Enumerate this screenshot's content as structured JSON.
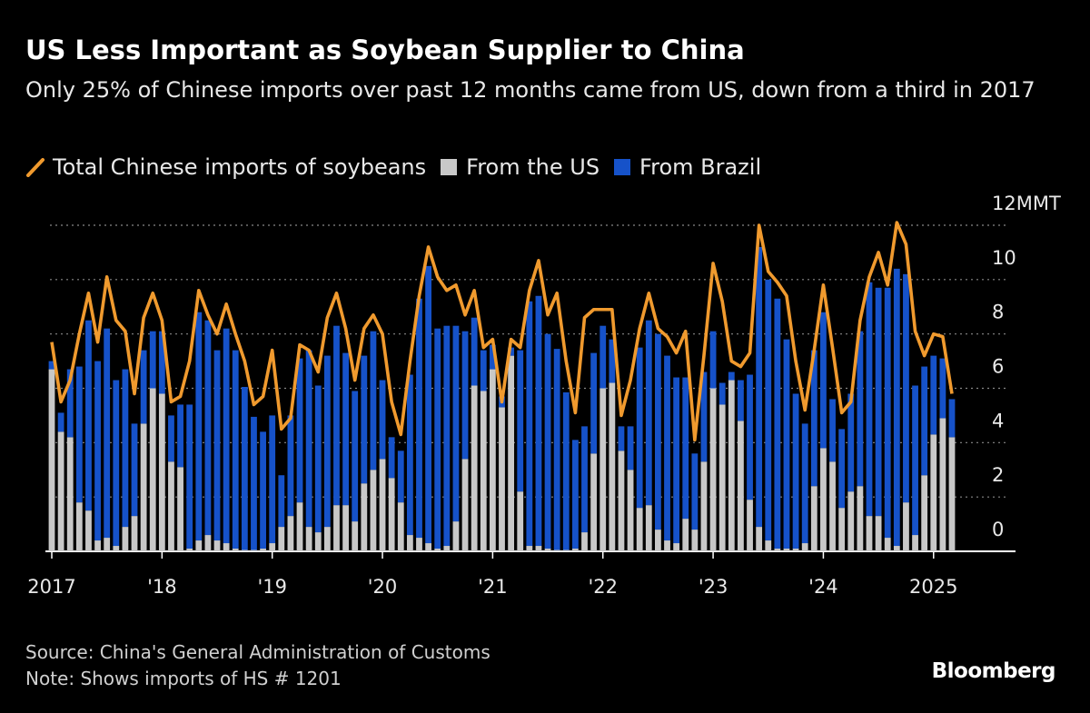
{
  "chart_data": {
    "type": "bar",
    "stacked": true,
    "title": "US Less Important as Soybean Supplier to China",
    "subtitle": "Only 25% of Chinese imports over past 12 months came from US, down from a third in 2017",
    "categories": [
      "2017",
      null,
      null,
      null,
      null,
      null,
      null,
      null,
      null,
      null,
      null,
      null,
      "'18",
      null,
      null,
      null,
      null,
      null,
      null,
      null,
      null,
      null,
      null,
      null,
      "'19",
      null,
      null,
      null,
      null,
      null,
      null,
      null,
      null,
      null,
      null,
      null,
      "'20",
      null,
      null,
      null,
      null,
      null,
      null,
      null,
      null,
      null,
      null,
      null,
      "'21",
      null,
      null,
      null,
      null,
      null,
      null,
      null,
      null,
      null,
      null,
      null,
      "'22",
      null,
      null,
      null,
      null,
      null,
      null,
      null,
      null,
      null,
      null,
      null,
      "'23",
      null,
      null,
      null,
      null,
      null,
      null,
      null,
      null,
      null,
      null,
      null,
      "'24",
      null,
      null,
      null,
      null,
      null,
      null,
      null,
      null,
      null,
      null,
      null,
      "2025",
      null,
      null
    ],
    "series": [
      {
        "name": "Total Chinese imports of soybeans",
        "type": "line",
        "color": "#f09a2e",
        "values": [
          7.7,
          5.5,
          6.3,
          8.0,
          9.5,
          7.7,
          10.1,
          8.5,
          8.1,
          5.8,
          8.6,
          9.5,
          8.5,
          5.5,
          5.7,
          7.0,
          9.6,
          8.7,
          8.0,
          9.1,
          8.0,
          7.0,
          5.4,
          5.7,
          7.4,
          4.5,
          4.9,
          7.6,
          7.4,
          6.6,
          8.6,
          9.5,
          8.2,
          6.3,
          8.2,
          8.7,
          8.0,
          5.5,
          4.3,
          7.0,
          9.4,
          11.2,
          10.1,
          9.6,
          9.8,
          8.7,
          9.6,
          7.5,
          7.8,
          5.5,
          7.8,
          7.5,
          9.6,
          10.7,
          8.7,
          9.5,
          7.0,
          5.1,
          8.6,
          8.9,
          8.9,
          8.9,
          5.0,
          6.3,
          8.2,
          9.5,
          8.2,
          7.9,
          7.3,
          8.1,
          4.1,
          7.2,
          10.6,
          9.2,
          7.0,
          6.8,
          7.3,
          12.0,
          10.3,
          9.9,
          9.4,
          7.0,
          5.2,
          7.4,
          9.8,
          7.5,
          5.1,
          5.5,
          8.5,
          10.1,
          11.0,
          9.8,
          12.1,
          11.3,
          8.1,
          7.2,
          8.0,
          7.9,
          5.8
        ]
      },
      {
        "name": "From the US",
        "type": "bar",
        "color": "#c8c8c8",
        "values": [
          6.7,
          4.4,
          4.2,
          1.8,
          1.5,
          0.4,
          0.5,
          0.2,
          0.9,
          1.3,
          4.7,
          6.0,
          5.8,
          3.3,
          3.1,
          0.1,
          0.4,
          0.6,
          0.4,
          0.3,
          0.1,
          0.05,
          0.05,
          0.1,
          0.3,
          0.9,
          1.3,
          1.8,
          0.9,
          0.7,
          0.9,
          1.7,
          1.7,
          1.1,
          2.5,
          3.0,
          3.4,
          2.7,
          1.8,
          0.6,
          0.5,
          0.3,
          0.1,
          0.2,
          1.1,
          3.4,
          6.1,
          5.9,
          6.7,
          5.3,
          7.2,
          2.2,
          0.2,
          0.2,
          0.1,
          0.05,
          0.05,
          0.1,
          0.7,
          3.6,
          6.0,
          6.2,
          3.7,
          3.0,
          1.6,
          1.7,
          0.8,
          0.4,
          0.3,
          1.2,
          0.8,
          3.3,
          6.0,
          5.4,
          6.3,
          4.8,
          1.9,
          0.9,
          0.4,
          0.1,
          0.1,
          0.1,
          0.3,
          2.4,
          3.8,
          3.3,
          1.6,
          2.2,
          2.4,
          1.3,
          1.3,
          0.5,
          0.2,
          1.8,
          0.6,
          2.8,
          4.3,
          4.9,
          4.2
        ]
      },
      {
        "name": "From Brazil",
        "type": "bar",
        "color": "#1652c9",
        "values": [
          0.3,
          0.7,
          2.5,
          5.0,
          7.0,
          6.6,
          7.7,
          6.1,
          5.8,
          3.4,
          2.7,
          2.1,
          2.3,
          1.7,
          2.3,
          5.3,
          8.4,
          7.9,
          7.0,
          7.9,
          7.3,
          6.0,
          4.9,
          4.3,
          4.7,
          1.9,
          3.7,
          5.3,
          6.5,
          5.4,
          6.3,
          6.6,
          5.6,
          4.8,
          4.7,
          5.1,
          2.9,
          1.5,
          1.9,
          5.9,
          8.8,
          10.2,
          8.1,
          8.1,
          7.2,
          4.7,
          2.5,
          1.5,
          0.9,
          0.4,
          0.3,
          5.2,
          9.0,
          9.2,
          7.9,
          7.4,
          5.8,
          4.0,
          3.9,
          3.7,
          2.3,
          1.6,
          0.9,
          1.6,
          5.9,
          6.8,
          7.2,
          6.8,
          6.1,
          5.2,
          2.8,
          3.3,
          2.1,
          0.8,
          0.3,
          1.5,
          4.6,
          10.3,
          9.6,
          9.2,
          7.7,
          5.7,
          4.4,
          5.0,
          5.0,
          2.3,
          2.9,
          3.6,
          5.7,
          8.6,
          8.4,
          9.2,
          10.2,
          8.4,
          5.5,
          4.0,
          2.9,
          2.2,
          1.4
        ]
      }
    ],
    "ylim": [
      0,
      12
    ],
    "yticks": [
      0,
      2,
      4,
      6,
      8,
      10,
      {
        "value": 12,
        "label": "12MMT"
      }
    ],
    "grid": true,
    "source": "Source: China's General Administration of Customs",
    "note": "Note: Shows imports of HS # 1201",
    "brand": "Bloomberg"
  }
}
